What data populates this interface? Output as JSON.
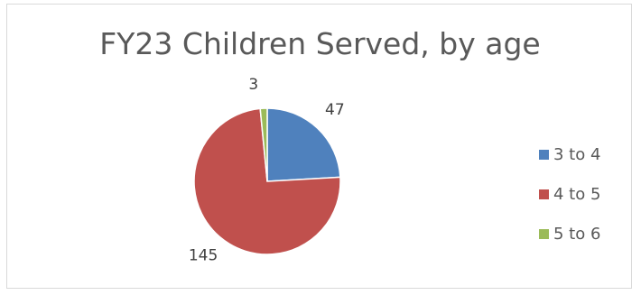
{
  "chart_data": {
    "type": "pie",
    "title": "FY23 Children Served, by age",
    "categories": [
      "3 to 4",
      "4 to 5",
      "5 to 6"
    ],
    "values": [
      47,
      145,
      3
    ],
    "colors": [
      "#4f81bd",
      "#c0504d",
      "#9bbb59"
    ],
    "data_labels": [
      "47",
      "145",
      "3"
    ],
    "legend_position": "right",
    "start_angle": "12 o'clock, clockwise"
  }
}
